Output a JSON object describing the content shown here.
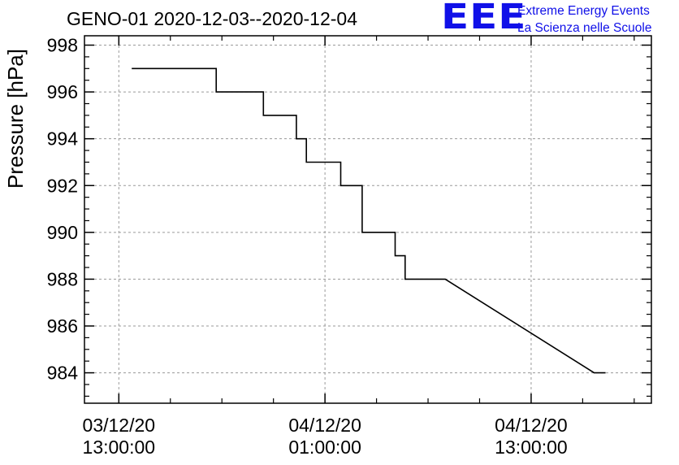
{
  "header": {
    "title": "GENO-01 2020-12-03--2020-12-04",
    "logo_mark": "EEE",
    "logo_line1": "Extreme Energy Events",
    "logo_line2": "La Scienza nelle Scuole",
    "logo_color": "#1010e8"
  },
  "chart_data": {
    "type": "line",
    "title": "GENO-01 2020-12-03--2020-12-04",
    "xlabel": "",
    "ylabel": "Pressure [hPa]",
    "grid": true,
    "xlim": [
      "2020-12-03 11:00",
      "2020-12-04 20:00"
    ],
    "ylim": [
      982.7,
      998.4
    ],
    "yticks": [
      984,
      986,
      988,
      990,
      992,
      994,
      996,
      998
    ],
    "xticks": [
      {
        "t": "2020-12-03 13:00",
        "line1": "03/12/20",
        "line2": "13:00:00"
      },
      {
        "t": "2020-12-04 01:00",
        "line1": "04/12/20",
        "line2": "01:00:00"
      },
      {
        "t": "2020-12-04 13:00",
        "line1": "04/12/20",
        "line2": "13:00:00"
      }
    ],
    "series": [
      {
        "points": [
          [
            "2020-12-03 13:45",
            997
          ],
          [
            "2020-12-03 18:40",
            997
          ],
          [
            "2020-12-03 18:40",
            996
          ],
          [
            "2020-12-03 21:25",
            996
          ],
          [
            "2020-12-03 21:25",
            995
          ],
          [
            "2020-12-03 23:20",
            995
          ],
          [
            "2020-12-03 23:20",
            994
          ],
          [
            "2020-12-03 23:55",
            994
          ],
          [
            "2020-12-03 23:55",
            993
          ],
          [
            "2020-12-04 01:55",
            993
          ],
          [
            "2020-12-04 01:55",
            992
          ],
          [
            "2020-12-04 03:10",
            992
          ],
          [
            "2020-12-04 03:10",
            990
          ],
          [
            "2020-12-04 05:05",
            990
          ],
          [
            "2020-12-04 05:05",
            989
          ],
          [
            "2020-12-04 05:40",
            989
          ],
          [
            "2020-12-04 05:40",
            988
          ],
          [
            "2020-12-04 08:00",
            988
          ],
          [
            "2020-12-04 16:40",
            984
          ],
          [
            "2020-12-04 17:20",
            984
          ]
        ]
      }
    ]
  }
}
